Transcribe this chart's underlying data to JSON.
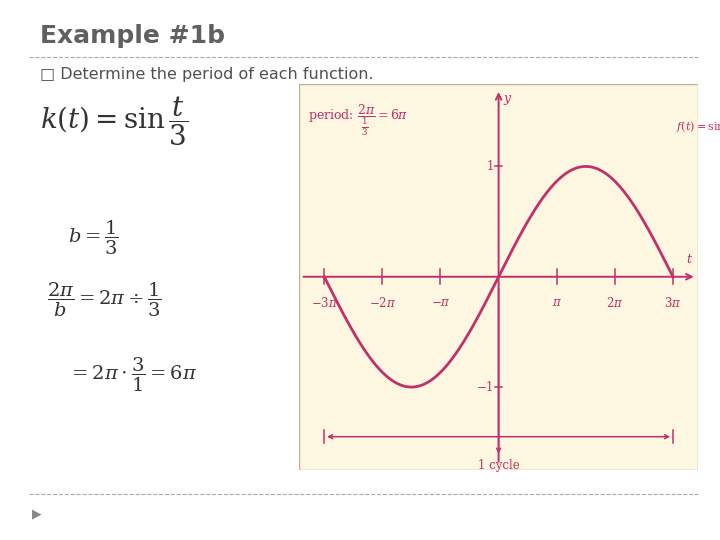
{
  "title": "Example #1b",
  "subtitle": "□ Determine the period of each function.",
  "bg_color": "#ffffff",
  "plot_bg_color": "#fdf6e0",
  "curve_color": "#c0306a",
  "axis_color": "#c0306a",
  "annotation_color": "#c0306a",
  "title_color": "#606060",
  "subtitle_color": "#505050",
  "formula_color": "#333333",
  "xlim": [
    -10.8,
    10.8
  ],
  "ylim": [
    -1.75,
    1.75
  ],
  "pi": 3.14159265358979
}
